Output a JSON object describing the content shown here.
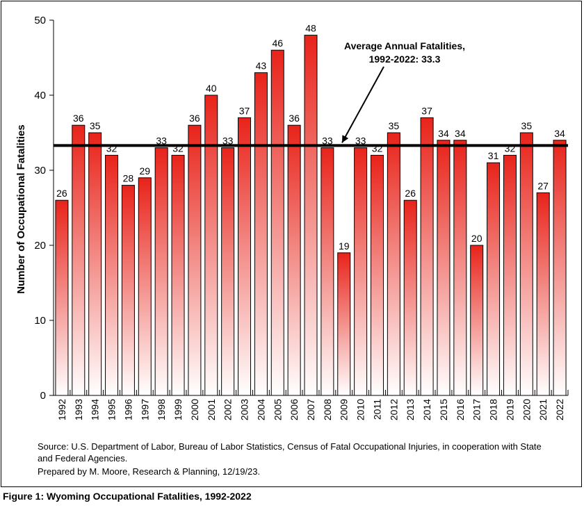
{
  "chart_data": {
    "type": "bar",
    "title": "",
    "xlabel": "",
    "ylabel": "Number of Occupational Fatalities",
    "ylim": [
      0,
      50
    ],
    "yticks": [
      0,
      10,
      20,
      30,
      40,
      50
    ],
    "grid": false,
    "categories": [
      "1992",
      "1993",
      "1994",
      "1995",
      "1996",
      "1997",
      "1998",
      "1999",
      "2000",
      "2001",
      "2002",
      "2003",
      "2004",
      "2005",
      "2006",
      "2007",
      "2008",
      "2009",
      "2010",
      "2011",
      "2012",
      "2013",
      "2014",
      "2015",
      "2016",
      "2017",
      "2018",
      "2019",
      "2020",
      "2021",
      "2022"
    ],
    "values": [
      26,
      36,
      35,
      32,
      28,
      29,
      33,
      32,
      36,
      40,
      33,
      37,
      43,
      46,
      36,
      48,
      33,
      19,
      33,
      32,
      35,
      26,
      37,
      34,
      34,
      20,
      31,
      32,
      35,
      27,
      34
    ],
    "average_line": {
      "value": 33.3,
      "label_line1": "Average Annual Fatalities,",
      "label_line2": "1992-2022: 33.3"
    },
    "colors": {
      "bar_top": "#e8231a",
      "bar_bottom": "#ffffff",
      "bar_stroke": "#000000",
      "average": "#000000"
    }
  },
  "source": {
    "line1": "Source: U.S. Department of Labor, Bureau of Labor Statistics, Census of Fatal Occupational Injuries, in cooperation with State",
    "line2": "and Federal Agencies.",
    "line3": "Prepared by M. Moore, Research & Planning, 12/19/23."
  },
  "caption": "Figure 1: Wyoming Occupational Fatalities, 1992-2022"
}
